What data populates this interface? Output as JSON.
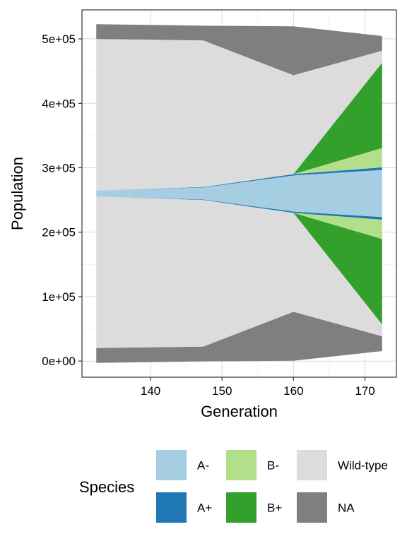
{
  "chart_data": {
    "type": "area",
    "subtype": "diverging stacked area (fish plot)",
    "xlabel": "Generation",
    "ylabel": "Population",
    "xlim": [
      130.4,
      174.4
    ],
    "ylim": [
      -25000,
      545000
    ],
    "x_ticks": [
      140,
      150,
      160,
      170
    ],
    "x_tick_labels": [
      "140",
      "150",
      "160",
      "170"
    ],
    "y_ticks": [
      0,
      100000,
      200000,
      300000,
      400000,
      500000
    ],
    "y_tick_labels": [
      "0e+00",
      "1e+05",
      "2e+05",
      "3e+05",
      "4e+05",
      "5e+05"
    ],
    "grid": true,
    "center": 260000,
    "x": [
      132.4,
      147.4,
      160,
      172.4
    ],
    "series": [
      {
        "name": "A-",
        "color": "#A6CEE3",
        "values": [
          8500,
          18500,
          56000,
          73000
        ]
      },
      {
        "name": "A+",
        "color": "#1F78B4",
        "values": [
          0,
          1500,
          4000,
          8000
        ]
      },
      {
        "name": "B-",
        "color": "#B2DF8A",
        "values": [
          0,
          0,
          0,
          60000
        ]
      },
      {
        "name": "B+",
        "color": "#33A02C",
        "values": [
          0,
          0,
          0,
          265000
        ]
      },
      {
        "name": "Wild-type",
        "color": "#DCDCDC",
        "values": [
          471000,
          455000,
          307000,
          37000
        ]
      },
      {
        "name": "NA",
        "color": "#7F7F7F",
        "values": [
          46000,
          46000,
          152000,
          46000
        ]
      }
    ],
    "legend": {
      "title": "Species",
      "position": "bottom",
      "layout": [
        [
          "A-",
          "B-",
          "Wild-type"
        ],
        [
          "A+",
          "B+",
          "NA"
        ]
      ]
    }
  }
}
